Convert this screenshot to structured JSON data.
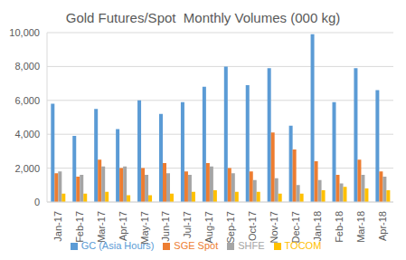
{
  "chart_data": {
    "type": "bar",
    "title": "Gold Futures/Spot  Monthly Volumes (000 kg)",
    "categories": [
      "Jan-17",
      "Feb-17",
      "Mar-17",
      "Apr-17",
      "May-17",
      "Jun-17",
      "Jul-17",
      "Aug-17",
      "Sep-17",
      "Oct-17",
      "Nov-17",
      "Dec-17",
      "Jan-18",
      "Feb-18",
      "Mar-18",
      "Apr-18"
    ],
    "series": [
      {
        "name": "GC (Asia Hours)",
        "color": "#5b9bd5",
        "values": [
          5800,
          3900,
          5500,
          4300,
          6000,
          5200,
          5900,
          6800,
          8000,
          6900,
          7900,
          4500,
          9900,
          5900,
          7900,
          6600
        ]
      },
      {
        "name": "SGE Spot",
        "color": "#ed7d31",
        "values": [
          1700,
          1500,
          2500,
          2000,
          2000,
          2300,
          1800,
          2300,
          2000,
          1800,
          4100,
          3100,
          2400,
          1600,
          2500,
          1800
        ]
      },
      {
        "name": "SHFE",
        "color": "#a5a5a5",
        "values": [
          1800,
          1600,
          2100,
          2100,
          1600,
          1700,
          1600,
          2100,
          1700,
          1300,
          1400,
          1000,
          1300,
          1100,
          1600,
          1500
        ]
      },
      {
        "name": "TOCOM",
        "color": "#ffc000",
        "values": [
          500,
          500,
          600,
          400,
          400,
          500,
          600,
          700,
          600,
          600,
          500,
          500,
          700,
          900,
          800,
          700
        ]
      }
    ],
    "ylim": [
      0,
      10000
    ],
    "yticks": [
      0,
      {
        "value": 2000,
        "label": "2,000"
      },
      {
        "value": 4000,
        "label": "4,000"
      },
      {
        "value": 6000,
        "label": "6,000"
      },
      {
        "value": 8000,
        "label": "8,000"
      },
      {
        "value": 10000,
        "label": "10,000"
      }
    ],
    "grid": true,
    "legend": "bottom"
  }
}
